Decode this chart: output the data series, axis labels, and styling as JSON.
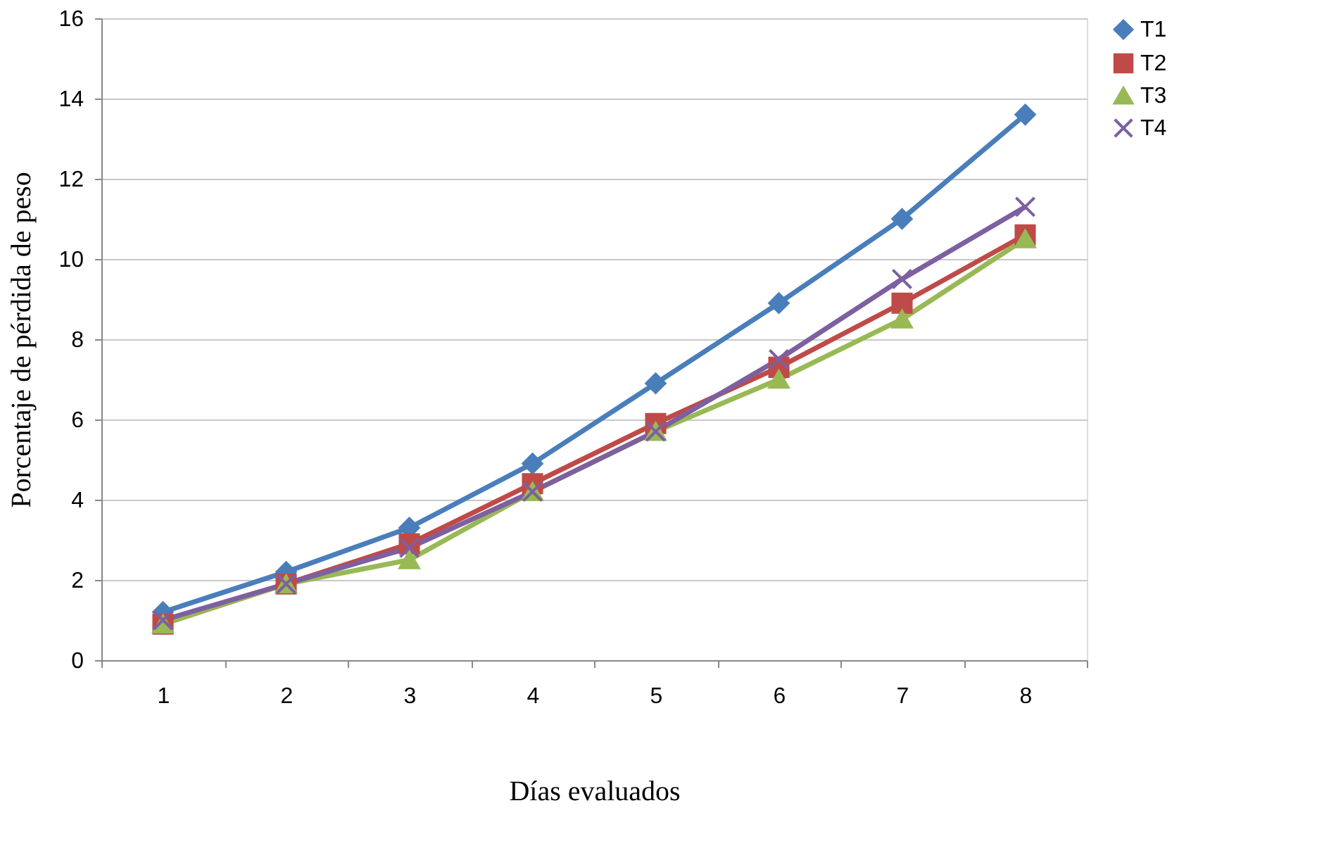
{
  "chart_data": {
    "type": "line",
    "xlabel": "Días evaluados",
    "ylabel": "Porcentaje de pérdida de peso",
    "categories": [
      "1",
      "2",
      "3",
      "4",
      "5",
      "6",
      "7",
      "8"
    ],
    "series": [
      {
        "name": "T1",
        "color": "#4a7ebb",
        "marker": "diamond",
        "values": [
          1.2,
          2.2,
          3.3,
          4.9,
          6.9,
          8.9,
          11.0,
          13.6
        ]
      },
      {
        "name": "T2",
        "color": "#be4b48",
        "marker": "square",
        "values": [
          0.9,
          1.9,
          2.9,
          4.4,
          5.9,
          7.3,
          8.9,
          10.6
        ]
      },
      {
        "name": "T3",
        "color": "#98b954",
        "marker": "triangle",
        "values": [
          0.9,
          1.9,
          2.5,
          4.2,
          5.7,
          7.0,
          8.5,
          10.5
        ]
      },
      {
        "name": "T4",
        "color": "#7d60a0",
        "marker": "cross",
        "values": [
          1.0,
          1.9,
          2.8,
          4.2,
          5.7,
          7.5,
          9.5,
          11.3
        ]
      }
    ],
    "ylim": [
      0,
      16
    ],
    "yticks": [
      0,
      2,
      4,
      6,
      8,
      10,
      12,
      14,
      16
    ],
    "grid": "y",
    "legend": "right",
    "line_style": "solid"
  }
}
